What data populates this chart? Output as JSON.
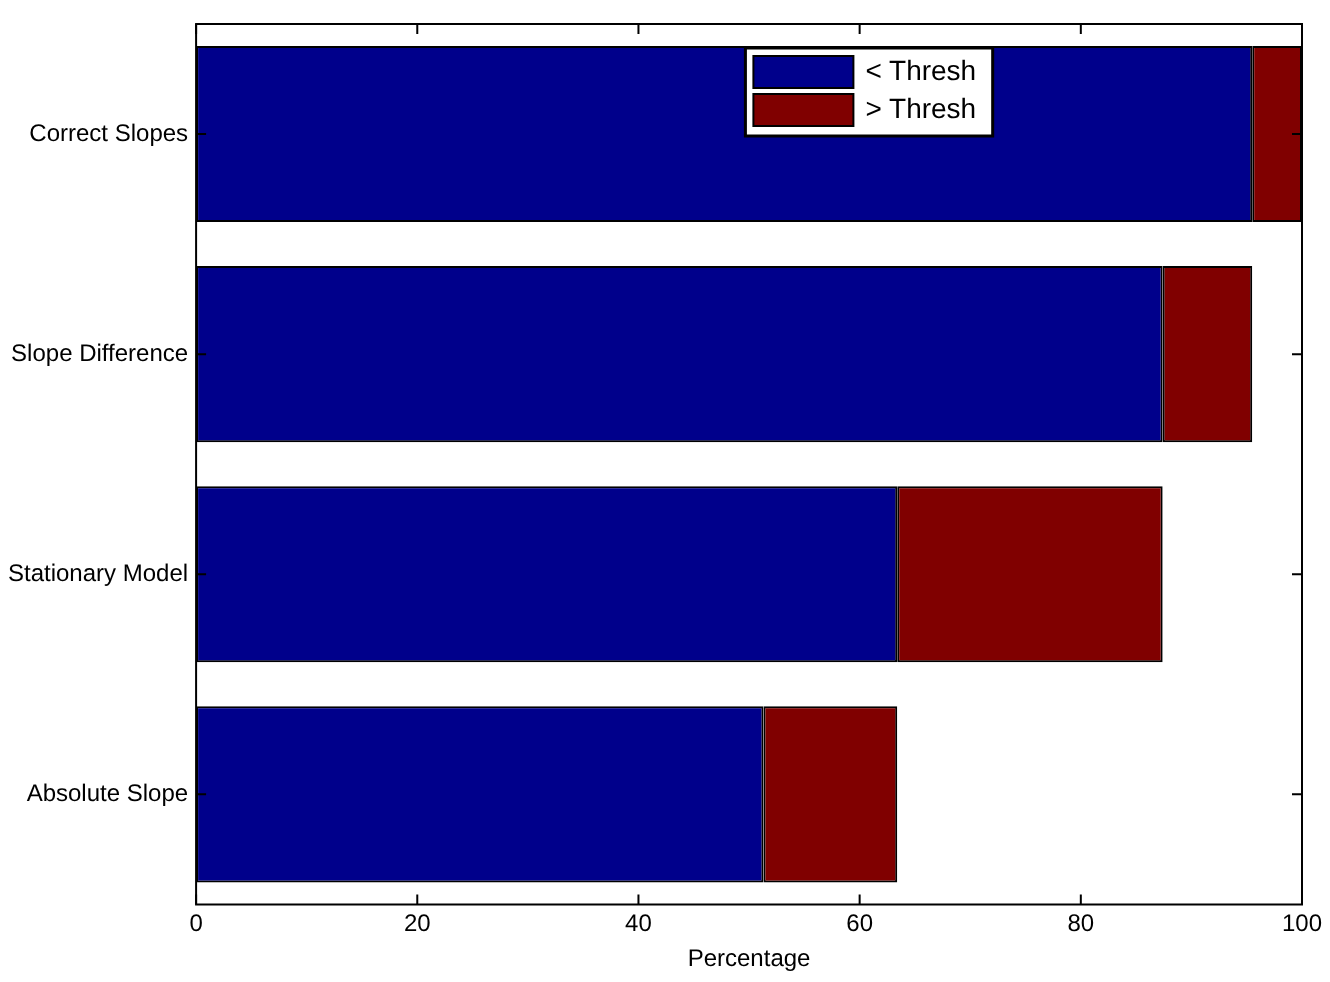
{
  "chart_data": {
    "type": "bar",
    "orientation": "horizontal",
    "stacked": true,
    "categories": [
      "Correct Slopes",
      "Slope Difference",
      "Stationary Model",
      "Absolute Slope"
    ],
    "series": [
      {
        "name": "< Thresh",
        "color": "#00008b",
        "values": [
          95.5,
          87.4,
          63.4,
          51.3
        ]
      },
      {
        "name": "> Thresh",
        "color": "#800000",
        "values": [
          4.5,
          8.1,
          24.0,
          12.1
        ]
      }
    ],
    "xlabel": "Percentage",
    "xlim": [
      0,
      100
    ],
    "xticks": [
      0,
      20,
      40,
      60,
      80,
      100
    ],
    "legend": "top",
    "grid": false
  }
}
